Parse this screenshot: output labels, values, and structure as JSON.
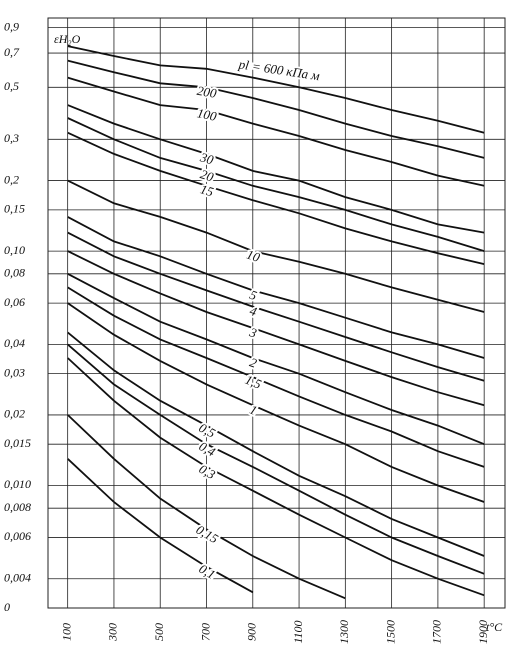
{
  "chart_data": {
    "type": "line",
    "y_label": "εH₂O",
    "x_label": "t°C",
    "log_y": true,
    "grid": true,
    "color": "#111111",
    "x": [
      100,
      300,
      500,
      700,
      900,
      1100,
      1300,
      1500,
      1700,
      1900
    ],
    "xlim": [
      15,
      1990
    ],
    "xticks": [
      100,
      300,
      500,
      700,
      900,
      1100,
      1300,
      1500,
      1700,
      1900
    ],
    "ylim": [
      0.003,
      0.95
    ],
    "yticks": [
      {
        "value": 0.9,
        "label": "0,9"
      },
      {
        "value": 0.7,
        "label": "0,7"
      },
      {
        "value": 0.5,
        "label": "0,5"
      },
      {
        "value": 0.3,
        "label": "0,3"
      },
      {
        "value": 0.2,
        "label": "0,2"
      },
      {
        "value": 0.15,
        "label": "0,15"
      },
      {
        "value": 0.1,
        "label": "0,10"
      },
      {
        "value": 0.08,
        "label": "0,08"
      },
      {
        "value": 0.06,
        "label": "0,06"
      },
      {
        "value": 0.04,
        "label": "0,04"
      },
      {
        "value": 0.03,
        "label": "0,03"
      },
      {
        "value": 0.02,
        "label": "0,02"
      },
      {
        "value": 0.015,
        "label": "0,015"
      },
      {
        "value": 0.01,
        "label": "0,010"
      },
      {
        "value": 0.008,
        "label": "0,008"
      },
      {
        "value": 0.006,
        "label": "0,006"
      },
      {
        "value": 0.004,
        "label": "0,004"
      },
      0
    ],
    "series": [
      {
        "name": "pl = 600 кПа м",
        "values": [
          0.75,
          0.68,
          0.62,
          0.6,
          0.55,
          0.5,
          0.45,
          0.4,
          0.36,
          0.32
        ]
      },
      {
        "name": "200",
        "values": [
          0.65,
          0.58,
          0.52,
          0.5,
          0.45,
          0.4,
          0.35,
          0.31,
          0.28,
          0.25
        ]
      },
      {
        "name": "100",
        "values": [
          0.55,
          0.48,
          0.42,
          0.4,
          0.35,
          0.31,
          0.27,
          0.24,
          0.21,
          0.19
        ]
      },
      {
        "name": "30",
        "values": [
          0.42,
          0.35,
          0.3,
          0.26,
          0.22,
          0.2,
          0.17,
          0.15,
          0.13,
          0.12
        ]
      },
      {
        "name": "20",
        "values": [
          0.37,
          0.3,
          0.25,
          0.22,
          0.19,
          0.17,
          0.15,
          0.13,
          0.115,
          0.1
        ]
      },
      {
        "name": "15",
        "values": [
          0.32,
          0.26,
          0.22,
          0.19,
          0.165,
          0.145,
          0.125,
          0.11,
          0.098,
          0.088
        ]
      },
      {
        "name": "10",
        "values": [
          0.2,
          0.16,
          0.14,
          0.12,
          0.1,
          0.09,
          0.08,
          0.07,
          0.062,
          0.055
        ]
      },
      {
        "name": "5",
        "values": [
          0.14,
          0.11,
          0.095,
          0.08,
          0.068,
          0.06,
          0.052,
          0.045,
          0.04,
          0.035
        ]
      },
      {
        "name": "4",
        "values": [
          0.12,
          0.095,
          0.08,
          0.068,
          0.058,
          0.05,
          0.043,
          0.037,
          0.032,
          0.028
        ]
      },
      {
        "name": "3",
        "values": [
          0.1,
          0.08,
          0.066,
          0.055,
          0.047,
          0.04,
          0.034,
          0.029,
          0.025,
          0.022
        ]
      },
      {
        "name": "2",
        "values": [
          0.08,
          0.063,
          0.05,
          0.042,
          0.035,
          0.03,
          0.025,
          0.021,
          0.018,
          0.015
        ]
      },
      {
        "name": "1,5",
        "values": [
          0.07,
          0.053,
          0.042,
          0.035,
          0.029,
          0.024,
          0.02,
          0.017,
          0.014,
          0.012
        ]
      },
      {
        "name": "1",
        "values": [
          0.06,
          0.044,
          0.034,
          0.027,
          0.022,
          0.018,
          0.015,
          0.012,
          0.01,
          0.0085
        ]
      },
      {
        "name": "0,5",
        "values": [
          0.045,
          0.031,
          0.023,
          0.018,
          0.014,
          0.011,
          0.009,
          0.0072,
          0.006,
          0.005
        ]
      },
      {
        "name": "0,4",
        "values": [
          0.04,
          0.027,
          0.02,
          0.015,
          0.012,
          0.0095,
          0.0075,
          0.006,
          0.005,
          0.0042
        ]
      },
      {
        "name": "0,3",
        "values": [
          0.035,
          0.023,
          0.016,
          0.012,
          0.0095,
          0.0075,
          0.006,
          0.0048,
          0.004,
          0.0034
        ]
      },
      {
        "name": "0,15",
        "values": [
          0.02,
          0.013,
          0.0088,
          0.0065,
          0.005,
          0.004,
          0.0033,
          null,
          null,
          null
        ]
      },
      {
        "name": "0,1",
        "values": [
          0.013,
          0.0085,
          0.006,
          0.0045,
          0.0035,
          null,
          null,
          null,
          null,
          null
        ]
      }
    ]
  }
}
